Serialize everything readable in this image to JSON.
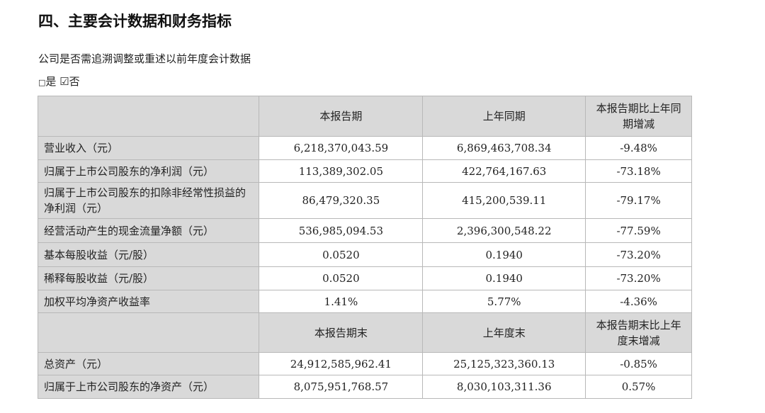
{
  "title": "四、主要会计数据和财务指标",
  "question": "公司是否需追溯调整或重述以前年度会计数据",
  "options": [
    {
      "label": "是",
      "checked": false
    },
    {
      "label": "否",
      "checked": true
    }
  ],
  "table1": {
    "headers": [
      "",
      "本报告期",
      "上年同期",
      "本报告期比上年同期增减"
    ],
    "rows": [
      [
        "营业收入（元）",
        "6,218,370,043.59",
        "6,869,463,708.34",
        "-9.48%"
      ],
      [
        "归属于上市公司股东的净利润（元）",
        "113,389,302.05",
        "422,764,167.63",
        "-73.18%"
      ],
      [
        "归属于上市公司股东的扣除非经常性损益的净利润（元）",
        "86,479,320.35",
        "415,200,539.11",
        "-79.17%"
      ],
      [
        "经营活动产生的现金流量净额（元）",
        "536,985,094.53",
        "2,396,300,548.22",
        "-77.59%"
      ],
      [
        "基本每股收益（元/股）",
        "0.0520",
        "0.1940",
        "-73.20%"
      ],
      [
        "稀释每股收益（元/股）",
        "0.0520",
        "0.1940",
        "-73.20%"
      ],
      [
        "加权平均净资产收益率",
        "1.41%",
        "5.77%",
        "-4.36%"
      ]
    ]
  },
  "table2": {
    "headers": [
      "",
      "本报告期末",
      "上年度末",
      "本报告期末比上年度末增减"
    ],
    "rows": [
      [
        "总资产（元）",
        "24,912,585,962.41",
        "25,125,323,360.13",
        "-0.85%"
      ],
      [
        "归属于上市公司股东的净资产（元）",
        "8,075,951,768.57",
        "8,030,103,311.36",
        "0.57%"
      ]
    ]
  }
}
